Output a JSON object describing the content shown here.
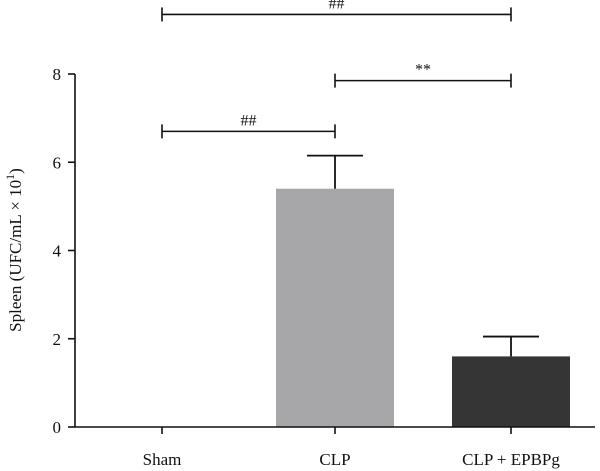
{
  "chart_data": {
    "type": "bar",
    "title": "",
    "xlabel": "",
    "ylabel": "Spleen (UFC/mL × 10",
    "ylabel_superscript": "1",
    "ylabel_suffix": ")",
    "ylim": [
      0,
      8
    ],
    "yticks": [
      0,
      2,
      4,
      6,
      8
    ],
    "categories": [
      "Sham",
      "CLP",
      "CLP + EPBPg"
    ],
    "values": [
      0,
      5.4,
      1.6
    ],
    "errors": [
      0,
      0.75,
      0.45
    ],
    "colors": [
      "#ffffff",
      "#a7a7aa",
      "#353535"
    ],
    "grid": false,
    "significance": [
      {
        "from": 0,
        "to": 1,
        "label": "##",
        "y": 6.7
      },
      {
        "from": 1,
        "to": 2,
        "label": "**",
        "y": 7.85
      },
      {
        "from": 0,
        "to": 2,
        "label": "##",
        "y": 9.35
      }
    ]
  }
}
